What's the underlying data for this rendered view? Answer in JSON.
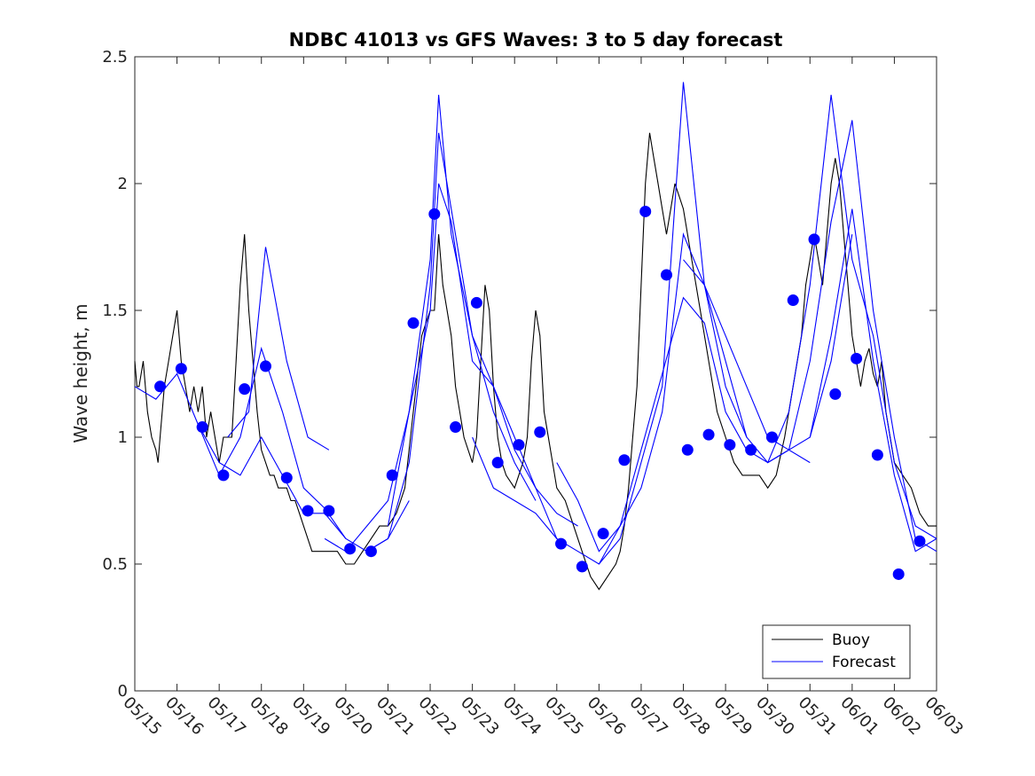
{
  "chart_data": {
    "type": "line",
    "title": "NDBC 41013 vs GFS Waves: 3 to 5 day forecast",
    "ylabel": "Wave height, m",
    "xlabel": "",
    "ylim": [
      0,
      2.5
    ],
    "yticks": [
      "0",
      "0.5",
      "1",
      "1.5",
      "2",
      "2.5"
    ],
    "ytick_values": [
      0,
      0.5,
      1,
      1.5,
      2,
      2.5
    ],
    "xlim": [
      "05/15",
      "06/03"
    ],
    "xticks": [
      "05/15",
      "05/16",
      "05/17",
      "05/18",
      "05/19",
      "05/20",
      "05/21",
      "05/22",
      "05/23",
      "05/24",
      "05/25",
      "05/26",
      "05/27",
      "05/28",
      "05/29",
      "05/30",
      "05/31",
      "06/01",
      "06/02",
      "06/03"
    ],
    "legend": {
      "position": "bottom-right",
      "entries": [
        {
          "label": "Buoy",
          "color": "#000000",
          "style": "line"
        },
        {
          "label": "Forecast",
          "color": "#0000ff",
          "style": "line"
        }
      ]
    },
    "series": [
      {
        "name": "Buoy",
        "color": "#000000",
        "x_days": [
          0,
          0.05,
          0.1,
          0.2,
          0.3,
          0.4,
          0.5,
          0.55,
          0.6,
          0.7,
          0.8,
          0.9,
          1.0,
          1.1,
          1.2,
          1.3,
          1.4,
          1.5,
          1.6,
          1.7,
          1.8,
          1.9,
          2.0,
          2.1,
          2.2,
          2.3,
          2.4,
          2.5,
          2.6,
          2.7,
          2.8,
          2.9,
          3.0,
          3.1,
          3.2,
          3.3,
          3.4,
          3.5,
          3.6,
          3.7,
          3.8,
          3.9,
          4.0,
          4.2,
          4.4,
          4.6,
          4.8,
          5.0,
          5.2,
          5.4,
          5.6,
          5.8,
          6.0,
          6.2,
          6.4,
          6.6,
          6.8,
          7.0,
          7.1,
          7.2,
          7.3,
          7.4,
          7.5,
          7.6,
          7.7,
          7.8,
          8.0,
          8.1,
          8.2,
          8.3,
          8.4,
          8.5,
          8.6,
          8.7,
          8.8,
          9.0,
          9.2,
          9.3,
          9.4,
          9.5,
          9.6,
          9.7,
          9.8,
          10.0,
          10.2,
          10.4,
          10.6,
          10.8,
          11.0,
          11.2,
          11.4,
          11.5,
          11.6,
          11.7,
          11.8,
          11.9,
          12.0,
          12.1,
          12.2,
          12.3,
          12.4,
          12.5,
          12.6,
          12.7,
          12.8,
          12.9,
          13.0,
          13.2,
          13.4,
          13.6,
          13.8,
          14.0,
          14.2,
          14.4,
          14.6,
          14.8,
          15.0,
          15.2,
          15.4,
          15.6,
          15.8,
          15.9,
          16.0,
          16.1,
          16.2,
          16.3,
          16.4,
          16.5,
          16.6,
          16.7,
          16.8,
          16.9,
          17.0,
          17.1,
          17.2,
          17.3,
          17.4,
          17.5,
          17.6,
          17.7,
          17.8,
          17.9,
          18.0,
          18.2,
          18.4,
          18.6,
          18.8,
          19.0
        ],
        "values": [
          1.3,
          1.2,
          1.2,
          1.3,
          1.1,
          1.0,
          0.95,
          0.9,
          1.0,
          1.2,
          1.3,
          1.4,
          1.5,
          1.3,
          1.2,
          1.1,
          1.2,
          1.1,
          1.2,
          1.0,
          1.1,
          1.0,
          0.9,
          1.0,
          1.0,
          1.0,
          1.3,
          1.6,
          1.8,
          1.5,
          1.3,
          1.1,
          0.95,
          0.9,
          0.85,
          0.85,
          0.8,
          0.8,
          0.8,
          0.75,
          0.75,
          0.7,
          0.65,
          0.55,
          0.55,
          0.55,
          0.55,
          0.5,
          0.5,
          0.55,
          0.6,
          0.65,
          0.65,
          0.7,
          0.8,
          1.1,
          1.4,
          1.5,
          1.5,
          1.8,
          1.6,
          1.5,
          1.4,
          1.2,
          1.1,
          1.0,
          0.9,
          1.0,
          1.3,
          1.6,
          1.5,
          1.2,
          1.0,
          0.9,
          0.85,
          0.8,
          0.9,
          1.0,
          1.3,
          1.5,
          1.4,
          1.1,
          1.0,
          0.8,
          0.75,
          0.65,
          0.55,
          0.45,
          0.4,
          0.45,
          0.5,
          0.55,
          0.65,
          0.8,
          1.0,
          1.2,
          1.6,
          2.0,
          2.2,
          2.1,
          2.0,
          1.9,
          1.8,
          1.9,
          2.0,
          1.95,
          1.9,
          1.7,
          1.5,
          1.3,
          1.1,
          1.0,
          0.9,
          0.85,
          0.85,
          0.85,
          0.8,
          0.85,
          1.0,
          1.2,
          1.4,
          1.6,
          1.7,
          1.8,
          1.7,
          1.6,
          1.8,
          2.0,
          2.1,
          2.0,
          1.8,
          1.6,
          1.4,
          1.3,
          1.2,
          1.3,
          1.35,
          1.25,
          1.2,
          1.3,
          1.1,
          1.0,
          0.9,
          0.85,
          0.8,
          0.7,
          0.65,
          0.65
        ]
      },
      {
        "name": "Forecast",
        "color": "#0000ff",
        "runs": [
          {
            "x_days": [
              0.0,
              0.5,
              1.0,
              1.5,
              2.0,
              2.5,
              3.0,
              3.5,
              4.0,
              4.5,
              5.0
            ],
            "values": [
              1.2,
              1.15,
              1.25,
              1.05,
              0.9,
              0.85,
              1.0,
              0.85,
              0.7,
              0.7,
              0.6
            ]
          },
          {
            "x_days": [
              1.5,
              2.0,
              2.5,
              3.0,
              3.5,
              4.0,
              4.5,
              5.0,
              5.5,
              6.0,
              6.5
            ],
            "values": [
              1.05,
              0.85,
              1.0,
              1.35,
              1.1,
              0.8,
              0.72,
              0.6,
              0.55,
              0.6,
              0.75
            ]
          },
          {
            "x_days": [
              2.2,
              2.7,
              3.1,
              3.6,
              4.1,
              4.6
            ],
            "values": [
              1.0,
              1.1,
              1.75,
              1.3,
              1.0,
              0.95
            ]
          },
          {
            "x_days": [
              4.5,
              5.0,
              5.5,
              6.0,
              6.5,
              7.0,
              7.2,
              7.5,
              8.0,
              8.5,
              9.0,
              9.5
            ],
            "values": [
              0.6,
              0.55,
              0.65,
              0.75,
              1.1,
              1.7,
              2.35,
              1.8,
              1.4,
              1.1,
              0.9,
              0.75
            ]
          },
          {
            "x_days": [
              5.5,
              6.0,
              6.5,
              7.0,
              7.2,
              7.5,
              8.0,
              8.5,
              9.0,
              9.5,
              10.0
            ],
            "values": [
              0.55,
              0.6,
              0.9,
              1.6,
              2.2,
              1.9,
              1.4,
              1.2,
              0.95,
              0.8,
              0.6
            ]
          },
          {
            "x_days": [
              6.0,
              6.5,
              7.0,
              7.2,
              7.5,
              8.0,
              8.5,
              9.0,
              9.5,
              10.0,
              10.5
            ],
            "values": [
              0.65,
              1.1,
              1.5,
              2.0,
              1.85,
              1.3,
              1.2,
              1.0,
              0.8,
              0.7,
              0.65
            ]
          },
          {
            "x_days": [
              8.0,
              8.5,
              9.0,
              9.5,
              10.0,
              10.5,
              11.0,
              11.5,
              12.0,
              12.5,
              13.0,
              13.5,
              14.0,
              14.5
            ],
            "values": [
              1.0,
              0.8,
              0.75,
              0.7,
              0.6,
              0.55,
              0.5,
              0.6,
              0.9,
              1.2,
              2.4,
              1.6,
              1.2,
              1.0
            ]
          },
          {
            "x_days": [
              10.0,
              10.5,
              11.0,
              11.5,
              12.0,
              12.5,
              13.0,
              13.5,
              14.0,
              14.5,
              15.0,
              15.5,
              16.0
            ],
            "values": [
              0.9,
              0.75,
              0.55,
              0.65,
              0.8,
              1.1,
              1.8,
              1.6,
              1.4,
              1.2,
              1.0,
              0.95,
              0.9
            ]
          },
          {
            "x_days": [
              11.0,
              11.5,
              12.0,
              12.5,
              13.0,
              13.5,
              14.0,
              14.5,
              15.0,
              15.5,
              16.0,
              16.5,
              17.0
            ],
            "values": [
              0.5,
              0.65,
              0.95,
              1.25,
              1.55,
              1.45,
              1.1,
              0.95,
              0.9,
              0.95,
              1.0,
              1.3,
              1.8
            ]
          },
          {
            "x_days": [
              13.0,
              13.5,
              14.0,
              14.5,
              15.0,
              15.5,
              16.0,
              16.5,
              17.0,
              17.5,
              18.0,
              18.5,
              19.0
            ],
            "values": [
              1.7,
              1.6,
              1.3,
              1.0,
              0.9,
              1.1,
              1.6,
              2.35,
              1.7,
              1.4,
              0.9,
              0.65,
              0.6
            ]
          },
          {
            "x_days": [
              15.0,
              15.5,
              16.0,
              16.5,
              17.0,
              17.5,
              18.0,
              18.5,
              19.0
            ],
            "values": [
              0.9,
              0.95,
              1.3,
              1.85,
              2.25,
              1.5,
              1.0,
              0.6,
              0.55
            ]
          },
          {
            "x_days": [
              16.0,
              16.5,
              17.0,
              17.5,
              18.0,
              18.5,
              19.0
            ],
            "values": [
              1.0,
              1.4,
              1.9,
              1.3,
              0.85,
              0.55,
              0.6
            ]
          }
        ]
      },
      {
        "name": "Forecast points",
        "color": "#0000ff",
        "style": "marker",
        "x_days": [
          0.6,
          1.1,
          1.6,
          2.1,
          2.6,
          3.1,
          3.6,
          4.1,
          4.6,
          5.1,
          5.6,
          6.1,
          6.6,
          7.1,
          7.6,
          8.1,
          8.6,
          9.1,
          9.6,
          10.1,
          10.6,
          11.1,
          11.6,
          12.1,
          12.6,
          13.1,
          13.6,
          14.1,
          14.6,
          15.1,
          15.6,
          16.1,
          16.6,
          17.1,
          17.6,
          18.1,
          18.6
        ],
        "values": [
          1.2,
          1.27,
          1.04,
          0.85,
          1.19,
          1.28,
          0.84,
          0.71,
          0.71,
          0.56,
          0.55,
          0.85,
          1.45,
          1.88,
          1.04,
          1.53,
          0.9,
          0.97,
          1.02,
          0.58,
          0.49,
          0.62,
          0.91,
          1.89,
          1.64,
          0.95,
          1.01,
          0.97,
          0.95,
          1.0,
          1.54,
          1.78,
          1.17,
          1.31,
          0.93,
          0.46,
          0.59
        ]
      }
    ]
  }
}
